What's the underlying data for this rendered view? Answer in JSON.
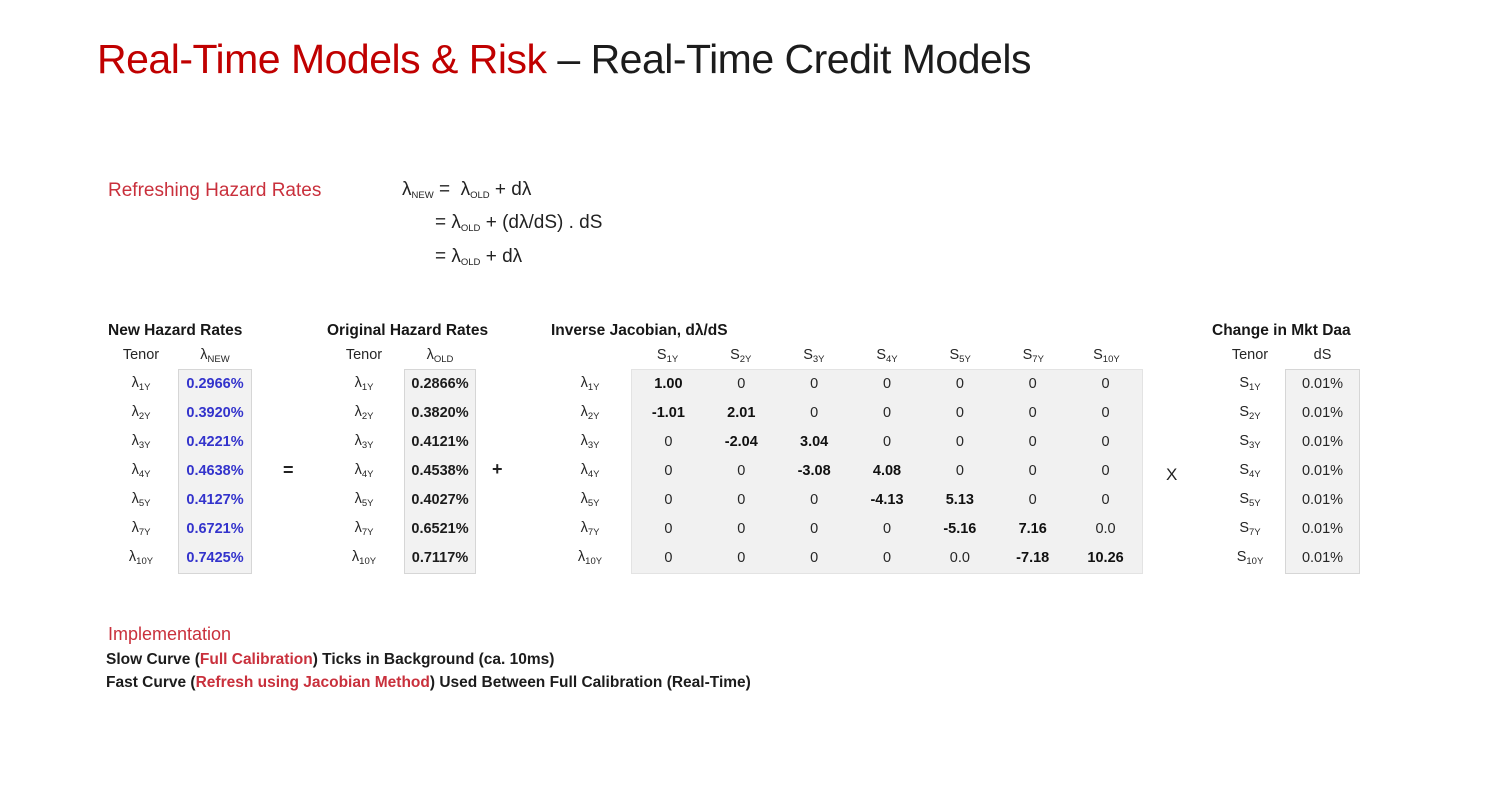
{
  "colors": {
    "title_red": "#C00000",
    "accent_red": "#C9303C",
    "value_blue": "#3333CC",
    "box_bg": "#F2F2F2",
    "box_border": "#D6D6D6",
    "matrix_bg": "#F1F1F1"
  },
  "title": {
    "red_part": "Real-Time Models & Risk",
    "dark_part": " – Real-Time Credit Models"
  },
  "equations": {
    "heading": "Refreshing Hazard Rates",
    "lines": [
      {
        "segments": [
          {
            "text": "λ"
          },
          {
            "text": "NEW",
            "sub": true
          },
          {
            "text": " =  λ"
          },
          {
            "text": "OLD",
            "sub": true
          },
          {
            "text": " + dλ"
          }
        ]
      },
      {
        "segments": [
          {
            "text": "= λ"
          },
          {
            "text": "OLD",
            "sub": true
          },
          {
            "text": " + (dλ/dS) . dS"
          }
        ]
      },
      {
        "segments": [
          {
            "text": "= λ"
          },
          {
            "text": "OLD",
            "sub": true
          },
          {
            "text": " + dλ"
          }
        ]
      }
    ]
  },
  "operators": {
    "equals": "=",
    "plus": "+",
    "multiply": "X"
  },
  "tables": {
    "new_hazard": {
      "title": "New Hazard Rates",
      "tenor_header": "Tenor",
      "value_header_base": "λ",
      "value_header_sub": "NEW",
      "row_base": "λ",
      "rows": [
        {
          "tenor": "1Y",
          "value": "0.2966%"
        },
        {
          "tenor": "2Y",
          "value": "0.3920%"
        },
        {
          "tenor": "3Y",
          "value": "0.4221%"
        },
        {
          "tenor": "4Y",
          "value": "0.4638%"
        },
        {
          "tenor": "5Y",
          "value": "0.4127%"
        },
        {
          "tenor": "7Y",
          "value": "0.6721%"
        },
        {
          "tenor": "10Y",
          "value": "0.7425%"
        }
      ]
    },
    "original_hazard": {
      "title": "Original Hazard Rates",
      "tenor_header": "Tenor",
      "value_header_base": "λ",
      "value_header_sub": "OLD",
      "row_base": "λ",
      "rows": [
        {
          "tenor": "1Y",
          "value": "0.2866%"
        },
        {
          "tenor": "2Y",
          "value": "0.3820%"
        },
        {
          "tenor": "3Y",
          "value": "0.4121%"
        },
        {
          "tenor": "4Y",
          "value": "0.4538%"
        },
        {
          "tenor": "5Y",
          "value": "0.4027%"
        },
        {
          "tenor": "7Y",
          "value": "0.6521%"
        },
        {
          "tenor": "10Y",
          "value": "0.7117%"
        }
      ]
    },
    "jacobian": {
      "title": "Inverse Jacobian, dλ/dS",
      "col_base": "S",
      "cols": [
        "1Y",
        "2Y",
        "3Y",
        "4Y",
        "5Y",
        "7Y",
        "10Y"
      ],
      "row_base": "λ",
      "rows": [
        "1Y",
        "2Y",
        "3Y",
        "4Y",
        "5Y",
        "7Y",
        "10Y"
      ],
      "matrix": [
        [
          "1.00",
          "0",
          "0",
          "0",
          "0",
          "0",
          "0"
        ],
        [
          "-1.01",
          "2.01",
          "0",
          "0",
          "0",
          "0",
          "0"
        ],
        [
          "0",
          "-2.04",
          "3.04",
          "0",
          "0",
          "0",
          "0"
        ],
        [
          "0",
          "0",
          "-3.08",
          "4.08",
          "0",
          "0",
          "0"
        ],
        [
          "0",
          "0",
          "0",
          "-4.13",
          "5.13",
          "0",
          "0"
        ],
        [
          "0",
          "0",
          "0",
          "0",
          "-5.16",
          "7.16",
          "0.0"
        ],
        [
          "0",
          "0",
          "0",
          "0",
          "0.0",
          "-7.18",
          "10.26"
        ]
      ]
    },
    "market_data": {
      "title": "Change in Mkt Daa",
      "tenor_header": "Tenor",
      "value_header": "dS",
      "row_base": "S",
      "rows": [
        {
          "tenor": "1Y",
          "value": "0.01%"
        },
        {
          "tenor": "2Y",
          "value": "0.01%"
        },
        {
          "tenor": "3Y",
          "value": "0.01%"
        },
        {
          "tenor": "4Y",
          "value": "0.01%"
        },
        {
          "tenor": "5Y",
          "value": "0.01%"
        },
        {
          "tenor": "7Y",
          "value": "0.01%"
        },
        {
          "tenor": "10Y",
          "value": "0.01%"
        }
      ]
    }
  },
  "implementation": {
    "heading": "Implementation",
    "lines": [
      {
        "segments": [
          {
            "text": "Slow Curve ("
          },
          {
            "text": "Full Calibration",
            "red": true
          },
          {
            "text": ") Ticks in Background (ca. 10ms)"
          }
        ]
      },
      {
        "segments": [
          {
            "text": "Fast Curve ("
          },
          {
            "text": "Refresh using Jacobian Method",
            "red": true
          },
          {
            "text": ") Used Between Full Calibration (Real-Time)"
          }
        ]
      }
    ]
  }
}
